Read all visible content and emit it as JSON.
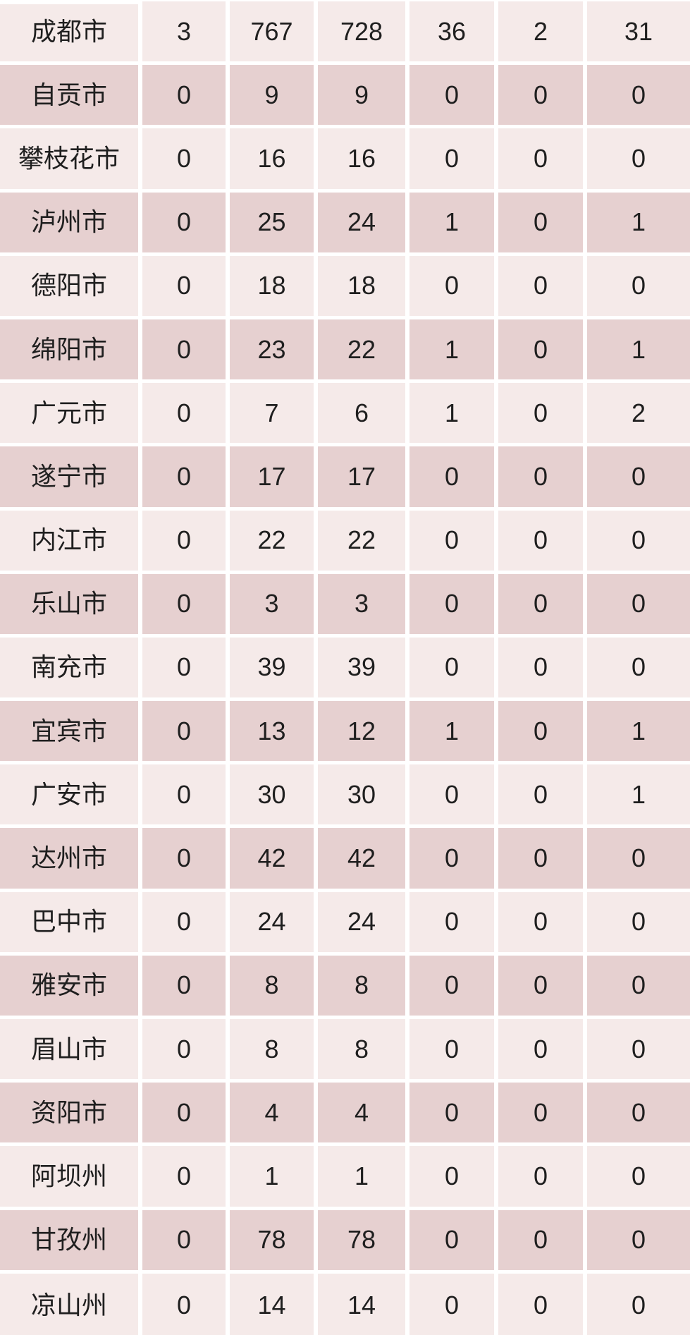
{
  "chart_data": {
    "type": "table",
    "title": "",
    "column_headers_visible": false,
    "rows": [
      {
        "region": "成都市",
        "values": [
          3,
          767,
          728,
          36,
          2,
          31
        ]
      },
      {
        "region": "自贡市",
        "values": [
          0,
          9,
          9,
          0,
          0,
          0
        ]
      },
      {
        "region": "攀枝花市",
        "values": [
          0,
          16,
          16,
          0,
          0,
          0
        ]
      },
      {
        "region": "泸州市",
        "values": [
          0,
          25,
          24,
          1,
          0,
          1
        ]
      },
      {
        "region": "德阳市",
        "values": [
          0,
          18,
          18,
          0,
          0,
          0
        ]
      },
      {
        "region": "绵阳市",
        "values": [
          0,
          23,
          22,
          1,
          0,
          1
        ]
      },
      {
        "region": "广元市",
        "values": [
          0,
          7,
          6,
          1,
          0,
          2
        ]
      },
      {
        "region": "遂宁市",
        "values": [
          0,
          17,
          17,
          0,
          0,
          0
        ]
      },
      {
        "region": "内江市",
        "values": [
          0,
          22,
          22,
          0,
          0,
          0
        ]
      },
      {
        "region": "乐山市",
        "values": [
          0,
          3,
          3,
          0,
          0,
          0
        ]
      },
      {
        "region": "南充市",
        "values": [
          0,
          39,
          39,
          0,
          0,
          0
        ]
      },
      {
        "region": "宜宾市",
        "values": [
          0,
          13,
          12,
          1,
          0,
          1
        ]
      },
      {
        "region": "广安市",
        "values": [
          0,
          30,
          30,
          0,
          0,
          1
        ]
      },
      {
        "region": "达州市",
        "values": [
          0,
          42,
          42,
          0,
          0,
          0
        ]
      },
      {
        "region": "巴中市",
        "values": [
          0,
          24,
          24,
          0,
          0,
          0
        ]
      },
      {
        "region": "雅安市",
        "values": [
          0,
          8,
          8,
          0,
          0,
          0
        ]
      },
      {
        "region": "眉山市",
        "values": [
          0,
          8,
          8,
          0,
          0,
          0
        ]
      },
      {
        "region": "资阳市",
        "values": [
          0,
          4,
          4,
          0,
          0,
          0
        ]
      },
      {
        "region": "阿坝州",
        "values": [
          0,
          1,
          1,
          0,
          0,
          0
        ]
      },
      {
        "region": "甘孜州",
        "values": [
          0,
          78,
          78,
          0,
          0,
          0
        ]
      },
      {
        "region": "凉山州",
        "values": [
          0,
          14,
          14,
          0,
          0,
          0
        ]
      }
    ]
  },
  "colors": {
    "row_light": "#f5eae9",
    "row_dark": "#e6d0d0",
    "gutter": "#ffffff",
    "text": "#1f1f1f"
  }
}
